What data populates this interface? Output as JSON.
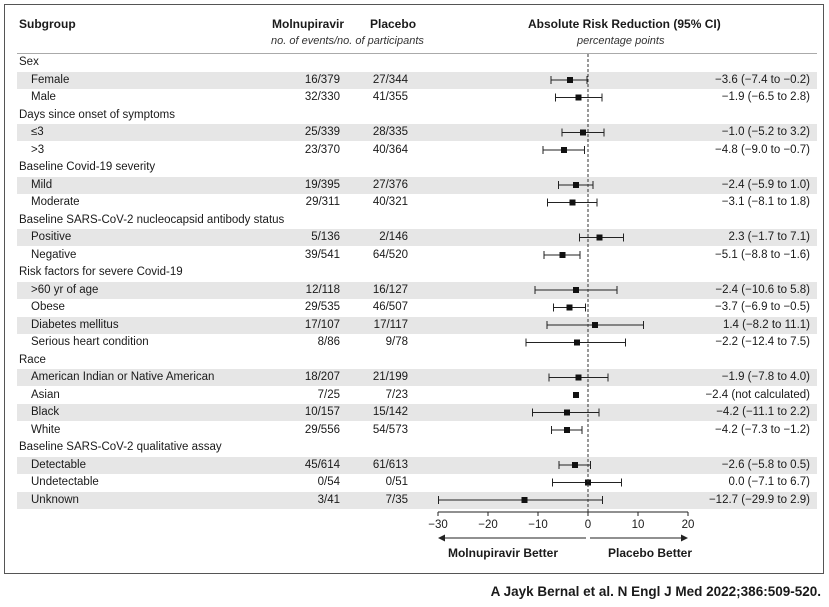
{
  "header": {
    "subgroup": "Subgroup",
    "drug": "Molnupiravir",
    "placebo": "Placebo",
    "counts_note": "no. of events/no. of participants",
    "effect": "Absolute Risk Reduction (95% CI)",
    "effect_units": "percentage points"
  },
  "footer": {
    "left_label": "Molnupiravir Better",
    "right_label": "Placebo Better"
  },
  "citation": "A Jayk Bernal et al. N Engl J Med 2022;386:509-520.",
  "colors": {
    "band": "#e6e6e6",
    "ink": "#1a1a1a"
  },
  "chart_data": {
    "type": "forest",
    "xlim": [
      -30,
      20
    ],
    "xticks": [
      "−30",
      "−20",
      "−10",
      "0",
      "10",
      "20"
    ],
    "xtick_values": [
      -30,
      -20,
      -10,
      0,
      10,
      20
    ],
    "reference_line": 0,
    "rows": [
      {
        "kind": "group",
        "label": "Sex"
      },
      {
        "kind": "item",
        "label": "Female",
        "drug": "16/379",
        "placebo": "27/344",
        "est": -3.6,
        "lo": -7.4,
        "hi": -0.2,
        "ci_text": "−3.6 (−7.4 to −0.2)"
      },
      {
        "kind": "item",
        "label": "Male",
        "drug": "32/330",
        "placebo": "41/355",
        "est": -1.9,
        "lo": -6.5,
        "hi": 2.8,
        "ci_text": "−1.9 (−6.5 to 2.8)"
      },
      {
        "kind": "group",
        "label": "Days since onset of symptoms"
      },
      {
        "kind": "item",
        "label": "≤3",
        "drug": "25/339",
        "placebo": "28/335",
        "est": -1.0,
        "lo": -5.2,
        "hi": 3.2,
        "ci_text": "−1.0 (−5.2 to 3.2)"
      },
      {
        "kind": "item",
        "label": ">3",
        "drug": "23/370",
        "placebo": "40/364",
        "est": -4.8,
        "lo": -9.0,
        "hi": -0.7,
        "ci_text": "−4.8 (−9.0 to −0.7)"
      },
      {
        "kind": "group",
        "label": "Baseline Covid-19 severity"
      },
      {
        "kind": "item",
        "label": "Mild",
        "drug": "19/395",
        "placebo": "27/376",
        "est": -2.4,
        "lo": -5.9,
        "hi": 1.0,
        "ci_text": "−2.4 (−5.9 to 1.0)"
      },
      {
        "kind": "item",
        "label": "Moderate",
        "drug": "29/311",
        "placebo": "40/321",
        "est": -3.1,
        "lo": -8.1,
        "hi": 1.8,
        "ci_text": "−3.1 (−8.1 to 1.8)"
      },
      {
        "kind": "group",
        "label": "Baseline SARS-CoV-2 nucleocapsid antibody status"
      },
      {
        "kind": "item",
        "label": "Positive",
        "drug": "5/136",
        "placebo": "2/146",
        "est": 2.3,
        "lo": -1.7,
        "hi": 7.1,
        "ci_text": "2.3 (−1.7 to 7.1)"
      },
      {
        "kind": "item",
        "label": "Negative",
        "drug": "39/541",
        "placebo": "64/520",
        "est": -5.1,
        "lo": -8.8,
        "hi": -1.6,
        "ci_text": "−5.1 (−8.8 to −1.6)"
      },
      {
        "kind": "group",
        "label": "Risk factors for severe Covid-19"
      },
      {
        "kind": "item",
        "label": ">60 yr of age",
        "drug": "12/118",
        "placebo": "16/127",
        "est": -2.4,
        "lo": -10.6,
        "hi": 5.8,
        "ci_text": "−2.4 (−10.6 to 5.8)"
      },
      {
        "kind": "item",
        "label": "Obese",
        "drug": "29/535",
        "placebo": "46/507",
        "est": -3.7,
        "lo": -6.9,
        "hi": -0.5,
        "ci_text": "−3.7 (−6.9 to −0.5)"
      },
      {
        "kind": "item",
        "label": "Diabetes mellitus",
        "drug": "17/107",
        "placebo": "17/117",
        "est": 1.4,
        "lo": -8.2,
        "hi": 11.1,
        "ci_text": "1.4 (−8.2 to 11.1)"
      },
      {
        "kind": "item",
        "label": "Serious heart condition",
        "drug": "8/86",
        "placebo": "9/78",
        "est": -2.2,
        "lo": -12.4,
        "hi": 7.5,
        "ci_text": "−2.2 (−12.4 to 7.5)"
      },
      {
        "kind": "group",
        "label": "Race"
      },
      {
        "kind": "item",
        "label": "American Indian or Native American",
        "drug": "18/207",
        "placebo": "21/199",
        "est": -1.9,
        "lo": -7.8,
        "hi": 4.0,
        "ci_text": "−1.9 (−7.8 to 4.0)"
      },
      {
        "kind": "item",
        "label": "Asian",
        "drug": "7/25",
        "placebo": "7/23",
        "est": -2.4,
        "lo": null,
        "hi": null,
        "ci_text": "−2.4 (not calculated)"
      },
      {
        "kind": "item",
        "label": "Black",
        "drug": "10/157",
        "placebo": "15/142",
        "est": -4.2,
        "lo": -11.1,
        "hi": 2.2,
        "ci_text": "−4.2 (−11.1 to 2.2)"
      },
      {
        "kind": "item",
        "label": "White",
        "drug": "29/556",
        "placebo": "54/573",
        "est": -4.2,
        "lo": -7.3,
        "hi": -1.2,
        "ci_text": "−4.2 (−7.3 to −1.2)"
      },
      {
        "kind": "group",
        "label": "Baseline SARS-CoV-2 qualitative assay"
      },
      {
        "kind": "item",
        "label": "Detectable",
        "drug": "45/614",
        "placebo": "61/613",
        "est": -2.6,
        "lo": -5.8,
        "hi": 0.5,
        "ci_text": "−2.6 (−5.8 to 0.5)"
      },
      {
        "kind": "item",
        "label": "Undetectable",
        "drug": "0/54",
        "placebo": "0/51",
        "est": 0.0,
        "lo": -7.1,
        "hi": 6.7,
        "ci_text": "0.0 (−7.1 to 6.7)"
      },
      {
        "kind": "item",
        "label": "Unknown",
        "drug": "3/41",
        "placebo": "7/35",
        "est": -12.7,
        "lo": -29.9,
        "hi": 2.9,
        "ci_text": "−12.7 (−29.9 to 2.9)"
      }
    ]
  }
}
